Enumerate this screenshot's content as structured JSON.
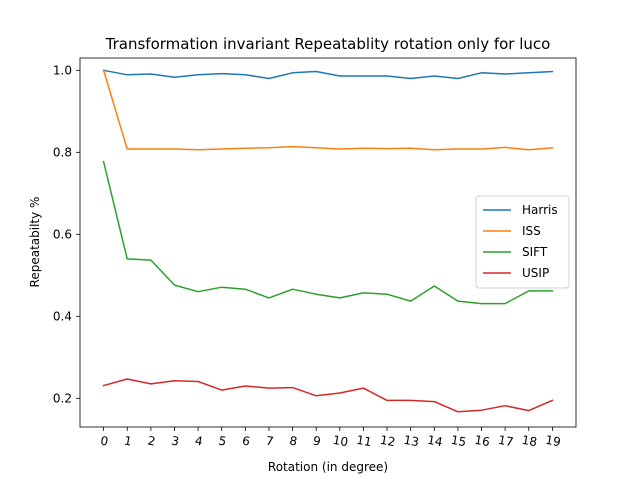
{
  "chart_data": {
    "type": "line",
    "title": "Transformation invariant Repeatablity rotation only for luco",
    "xlabel": "Rotation (in degree)",
    "ylabel": "Repeatabilty %",
    "x": [
      0,
      1,
      2,
      3,
      4,
      5,
      6,
      7,
      8,
      9,
      10,
      11,
      12,
      13,
      14,
      15,
      16,
      17,
      18,
      19
    ],
    "xticks": [
      "0",
      "1",
      "2",
      "3",
      "4",
      "5",
      "6",
      "7",
      "8",
      "9",
      "10",
      "11",
      "12",
      "13",
      "14",
      "15",
      "16",
      "17",
      "18",
      "19"
    ],
    "yticks": [
      "0.2",
      "0.4",
      "0.6",
      "0.8",
      "1.0"
    ],
    "ylim": [
      0.13,
      1.03
    ],
    "legend_position": "center-right",
    "grid": false,
    "series": [
      {
        "name": "Harris",
        "color": "#1f77b4",
        "values": [
          1.0,
          0.989,
          0.991,
          0.983,
          0.989,
          0.992,
          0.989,
          0.98,
          0.994,
          0.997,
          0.986,
          0.986,
          0.986,
          0.98,
          0.986,
          0.98,
          0.994,
          0.991,
          0.994,
          0.997
        ]
      },
      {
        "name": "ISS",
        "color": "#ff7f0e",
        "values": [
          1.0,
          0.808,
          0.808,
          0.808,
          0.806,
          0.808,
          0.81,
          0.811,
          0.814,
          0.811,
          0.808,
          0.81,
          0.809,
          0.81,
          0.806,
          0.808,
          0.808,
          0.812,
          0.806,
          0.811
        ]
      },
      {
        "name": "SIFT",
        "color": "#2ca02c",
        "values": [
          0.777,
          0.54,
          0.537,
          0.476,
          0.46,
          0.471,
          0.466,
          0.445,
          0.466,
          0.454,
          0.445,
          0.457,
          0.454,
          0.437,
          0.474,
          0.437,
          0.431,
          0.431,
          0.462,
          0.462
        ]
      },
      {
        "name": "USIP",
        "color": "#d62728",
        "values": [
          0.231,
          0.247,
          0.235,
          0.243,
          0.241,
          0.22,
          0.23,
          0.225,
          0.226,
          0.206,
          0.213,
          0.225,
          0.195,
          0.195,
          0.192,
          0.167,
          0.171,
          0.182,
          0.17,
          0.195
        ]
      }
    ]
  }
}
